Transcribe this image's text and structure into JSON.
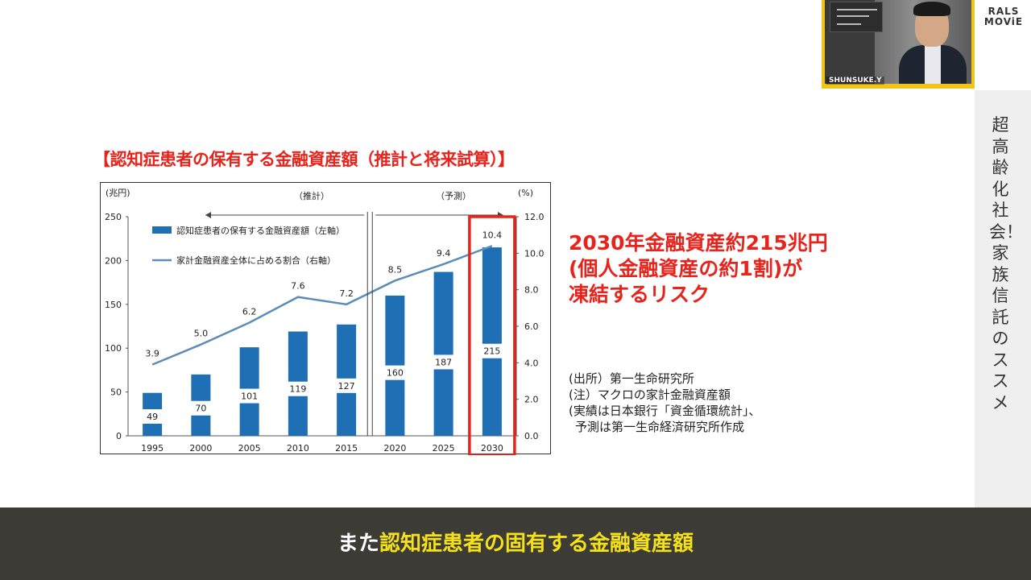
{
  "slide_title": "【認知症患者の保有する金融資産額（推計と将来試算）】",
  "callout_lines": [
    "2030年金融資産約215兆円",
    "(個人金融資産の約1割)が",
    "凍結するリスク"
  ],
  "source_lines": [
    "(出所）第一生命研究所",
    "(注）マクロの家計金融資産額",
    "(実績は日本銀行「資金循環統計」、",
    "予測は第一生命経済研究所作成"
  ],
  "side_title": "超高齢化社会！家族信託のススメ",
  "brand": {
    "line1": "RALS",
    "line2": "MOViE"
  },
  "video": {
    "name_tag": "SHUNSUKE.Y"
  },
  "subtitle": {
    "prefix": "また",
    "highlight": "認知症患者の固有する金融資産額"
  },
  "colors": {
    "accent_red": "#e8231c",
    "bar_blue": "#1f6fb5",
    "line_blue": "#5b8db8",
    "subtitle_yellow": "#f5e11a",
    "frame_yellow": "#f0c419"
  },
  "chart_data": {
    "type": "bar",
    "categories": [
      "1995",
      "2000",
      "2005",
      "2010",
      "2015",
      "2020",
      "2025",
      "2030"
    ],
    "y_left_label": "(兆円)",
    "y_right_label": "(%)",
    "y_left_ticks": [
      "0",
      "50",
      "100",
      "150",
      "200",
      "250"
    ],
    "y_right_ticks": [
      "0.0",
      "2.0",
      "4.0",
      "6.0",
      "8.0",
      "10.0",
      "12.0"
    ],
    "ylim_left": [
      0,
      250
    ],
    "ylim_right": [
      0,
      12
    ],
    "period_actual": "（推計）",
    "period_forecast": "（予測）",
    "highlight_category": "2030",
    "series": [
      {
        "name": "認知症患者の保有する金融資産額（左軸）",
        "axis": "left",
        "kind": "bar",
        "values": [
          49,
          70,
          101,
          119,
          127,
          160,
          187,
          215
        ],
        "labels": [
          "49",
          "70",
          "101",
          "119",
          "127",
          "160",
          "187",
          "215"
        ]
      },
      {
        "name": "家計金融資産全体に占める割合（右軸）",
        "axis": "right",
        "kind": "line",
        "values": [
          3.9,
          5.0,
          6.2,
          7.6,
          7.2,
          8.5,
          9.4,
          10.4
        ],
        "labels": [
          "3.9",
          "5.0",
          "6.2",
          "7.6",
          "7.2",
          "8.5",
          "9.4",
          "10.4"
        ]
      }
    ]
  }
}
